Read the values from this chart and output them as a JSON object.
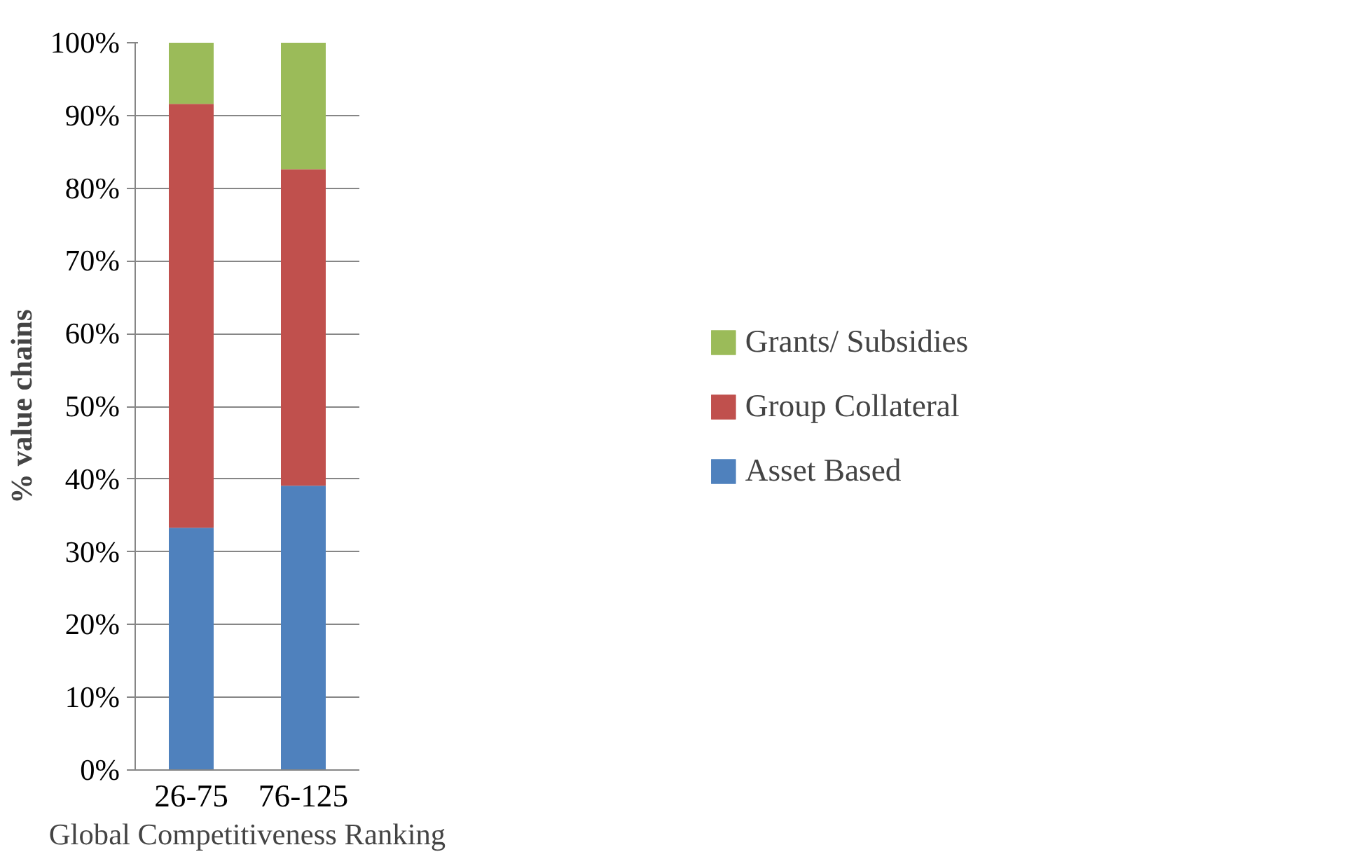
{
  "chart_data": {
    "type": "bar",
    "stacked": true,
    "categories": [
      "26-75",
      "76-125"
    ],
    "xlabel": "Global Competitiveness Ranking",
    "ylabel": "% value chains",
    "series": [
      {
        "name": "Asset Based",
        "color": "#4f81bd",
        "values": [
          33.3,
          39.1
        ]
      },
      {
        "name": "Group Collateral",
        "color": "#c0504d",
        "values": [
          58.3,
          43.5
        ]
      },
      {
        "name": "Grants/ Subsidies",
        "color": "#9bbb59",
        "values": [
          8.4,
          17.4
        ]
      }
    ],
    "ylim": [
      0,
      100
    ],
    "yticks": [
      {
        "value": 0,
        "label": "0%"
      },
      {
        "value": 10,
        "label": "10%"
      },
      {
        "value": 20,
        "label": "20%"
      },
      {
        "value": 30,
        "label": "30%"
      },
      {
        "value": 40,
        "label": "40%"
      },
      {
        "value": 50,
        "label": "50%"
      },
      {
        "value": 60,
        "label": "60%"
      },
      {
        "value": 70,
        "label": "70%"
      },
      {
        "value": 80,
        "label": "80%"
      },
      {
        "value": 90,
        "label": "90%"
      },
      {
        "value": 100,
        "label": "100%"
      }
    ],
    "grid": "y",
    "legend": "right"
  }
}
